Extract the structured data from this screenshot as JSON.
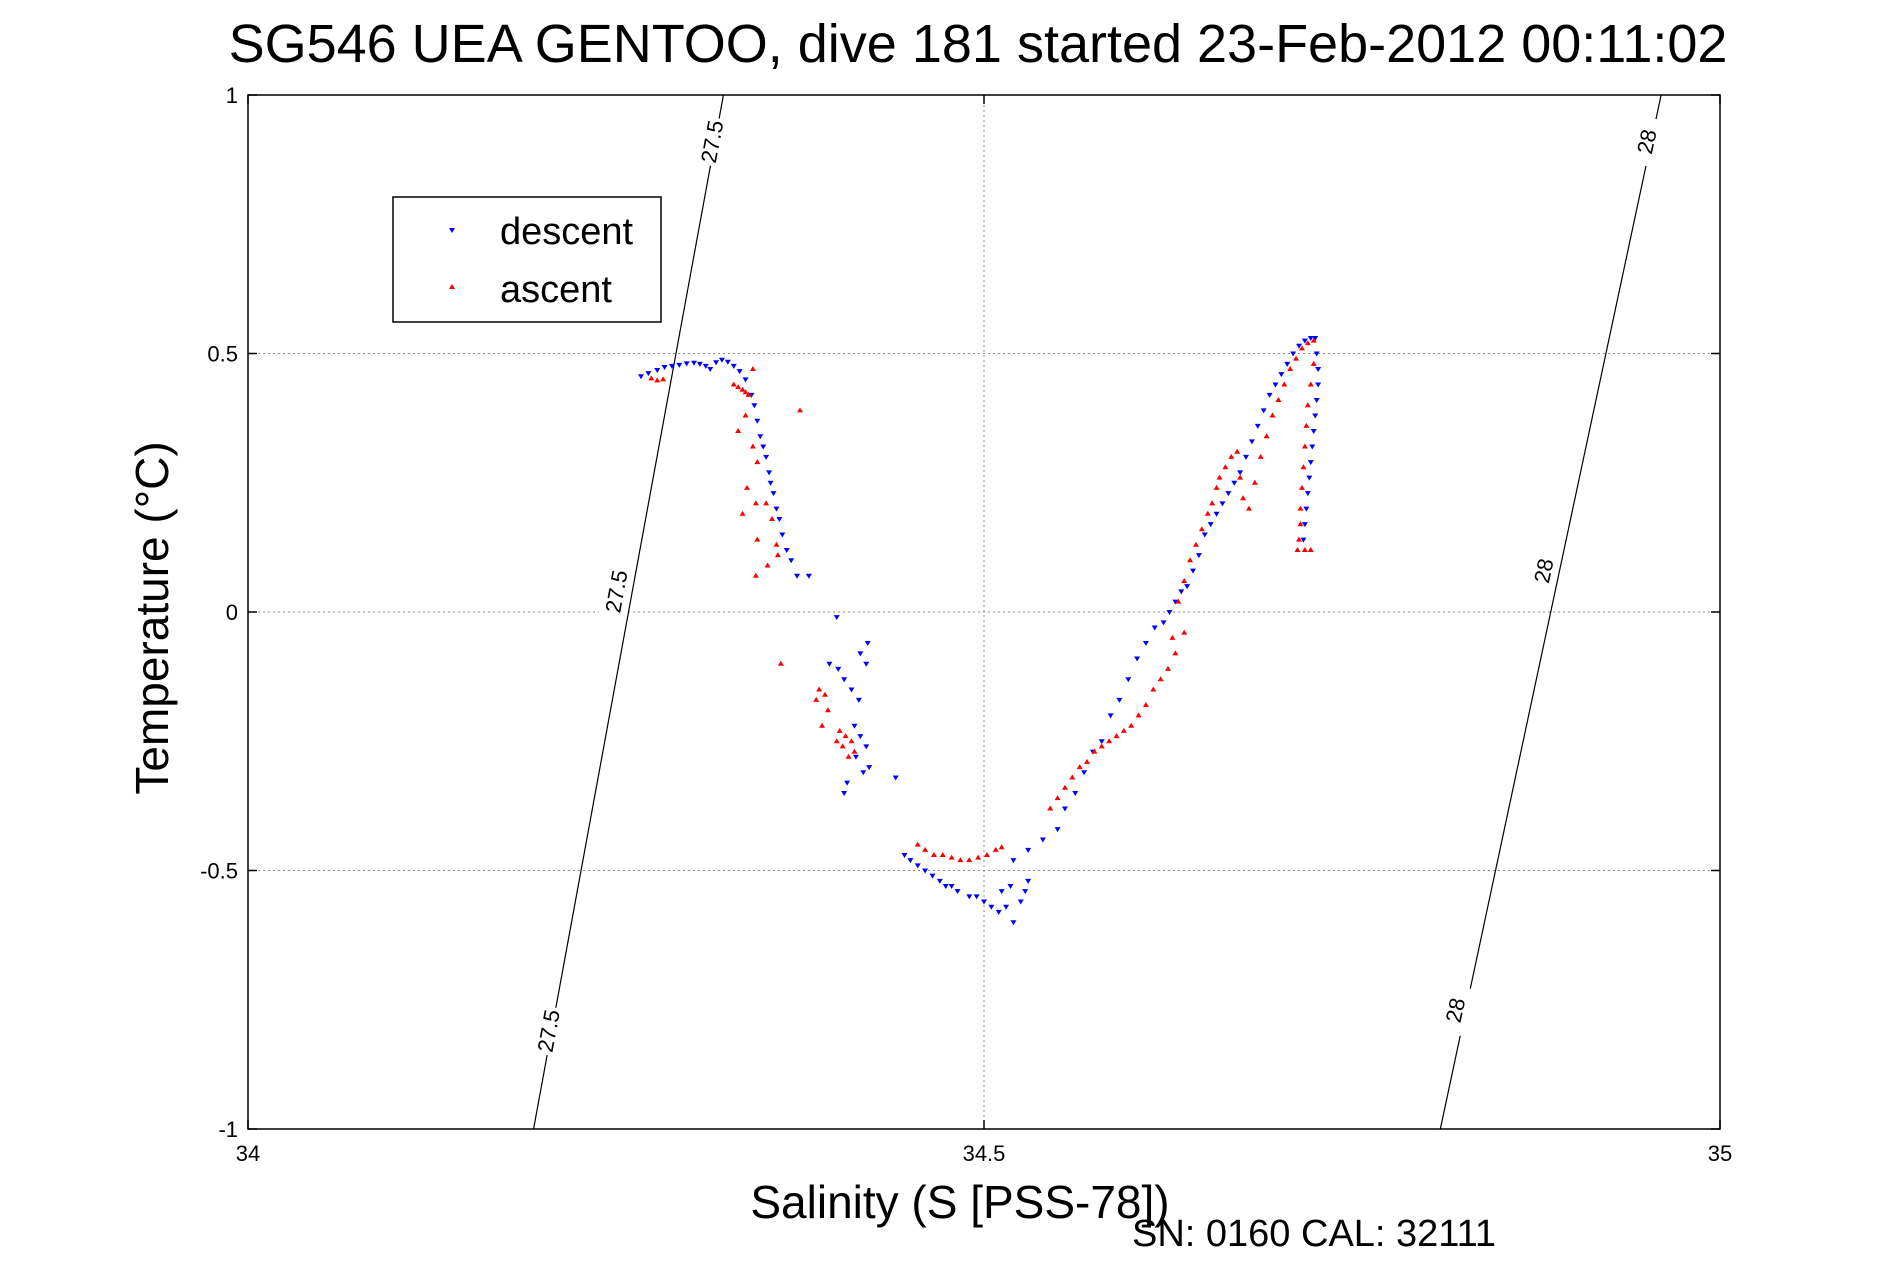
{
  "chart_data": {
    "type": "scatter",
    "title": "SG546 UEA GENTOO, dive 181 started 23-Feb-2012 00:11:02",
    "xlabel": "Salinity (S [PSS-78])",
    "ylabel": "Temperature (°C)",
    "xlim": [
      34,
      35
    ],
    "ylim": [
      -1,
      1
    ],
    "xticks": [
      34,
      34.5,
      35
    ],
    "xtick_labels": [
      "34",
      "34.5",
      "35"
    ],
    "yticks": [
      -1,
      -0.5,
      0,
      0.5,
      1
    ],
    "ytick_labels": [
      "-1",
      "-0.5",
      "0",
      "0.5",
      "1"
    ],
    "grid": true,
    "legend_position": "upper-left",
    "colors": {
      "descent": "#0000ff",
      "ascent": "#ff0000",
      "axis": "#000000"
    },
    "footnote": "SN: 0160  CAL: 32111",
    "isopycnals": [
      {
        "label": "27.5",
        "points": [
          [
            34.194,
            -1
          ],
          [
            34.323,
            1
          ]
        ],
        "label_positions": [
          [
            34.204,
            -0.81
          ],
          [
            34.25,
            0.04
          ],
          [
            34.315,
            0.91
          ]
        ]
      },
      {
        "label": "28",
        "points": [
          [
            34.81,
            -1
          ],
          [
            34.96,
            1
          ]
        ],
        "label_positions": [
          [
            34.82,
            -0.77
          ],
          [
            34.88,
            0.08
          ],
          [
            34.95,
            0.91
          ]
        ]
      }
    ],
    "series": [
      {
        "name": "descent",
        "marker": "triangle-down",
        "points": [
          [
            34.267,
            0.456
          ],
          [
            34.272,
            0.462
          ],
          [
            34.278,
            0.468
          ],
          [
            34.283,
            0.474
          ],
          [
            34.288,
            0.476
          ],
          [
            34.293,
            0.478
          ],
          [
            34.298,
            0.481
          ],
          [
            34.303,
            0.482
          ],
          [
            34.307,
            0.48
          ],
          [
            34.311,
            0.476
          ],
          [
            34.314,
            0.47
          ],
          [
            34.318,
            0.483
          ],
          [
            34.322,
            0.488
          ],
          [
            34.326,
            0.484
          ],
          [
            34.33,
            0.476
          ],
          [
            34.334,
            0.466
          ],
          [
            34.338,
            0.45
          ],
          [
            34.342,
            0.42
          ],
          [
            34.344,
            0.4
          ],
          [
            34.346,
            0.37
          ],
          [
            34.348,
            0.34
          ],
          [
            34.35,
            0.32
          ],
          [
            34.352,
            0.3
          ],
          [
            34.354,
            0.27
          ],
          [
            34.355,
            0.25
          ],
          [
            34.357,
            0.23
          ],
          [
            34.359,
            0.2
          ],
          [
            34.361,
            0.18
          ],
          [
            34.363,
            0.15
          ],
          [
            34.366,
            0.12
          ],
          [
            34.369,
            0.1
          ],
          [
            34.373,
            0.07
          ],
          [
            34.381,
            0.07
          ],
          [
            34.4,
            -0.01
          ],
          [
            34.395,
            -0.1
          ],
          [
            34.401,
            -0.11
          ],
          [
            34.405,
            -0.13
          ],
          [
            34.41,
            -0.15
          ],
          [
            34.415,
            -0.17
          ],
          [
            34.421,
            -0.06
          ],
          [
            34.416,
            -0.08
          ],
          [
            34.42,
            -0.1
          ],
          [
            34.412,
            -0.22
          ],
          [
            34.416,
            -0.24
          ],
          [
            34.42,
            -0.26
          ],
          [
            34.413,
            -0.28
          ],
          [
            34.422,
            -0.3
          ],
          [
            34.418,
            -0.31
          ],
          [
            34.407,
            -0.33
          ],
          [
            34.44,
            -0.32
          ],
          [
            34.405,
            -0.35
          ],
          [
            34.446,
            -0.47
          ],
          [
            34.45,
            -0.48
          ],
          [
            34.455,
            -0.49
          ],
          [
            34.46,
            -0.5
          ],
          [
            34.465,
            -0.51
          ],
          [
            34.47,
            -0.52
          ],
          [
            34.474,
            -0.53
          ],
          [
            34.478,
            -0.53
          ],
          [
            34.482,
            -0.54
          ],
          [
            34.49,
            -0.55
          ],
          [
            34.495,
            -0.55
          ],
          [
            34.5,
            -0.56
          ],
          [
            34.505,
            -0.57
          ],
          [
            34.51,
            -0.58
          ],
          [
            34.515,
            -0.57
          ],
          [
            34.52,
            -0.6
          ],
          [
            34.525,
            -0.56
          ],
          [
            34.528,
            -0.54
          ],
          [
            34.53,
            -0.52
          ],
          [
            34.518,
            -0.53
          ],
          [
            34.512,
            -0.54
          ],
          [
            34.52,
            -0.48
          ],
          [
            34.53,
            -0.46
          ],
          [
            34.54,
            -0.44
          ],
          [
            34.55,
            -0.42
          ],
          [
            34.555,
            -0.38
          ],
          [
            34.562,
            -0.35
          ],
          [
            34.568,
            -0.31
          ],
          [
            34.574,
            -0.27
          ],
          [
            34.58,
            -0.25
          ],
          [
            34.586,
            -0.2
          ],
          [
            34.592,
            -0.17
          ],
          [
            34.598,
            -0.13
          ],
          [
            34.604,
            -0.09
          ],
          [
            34.61,
            -0.06
          ],
          [
            34.616,
            -0.03
          ],
          [
            34.622,
            -0.02
          ],
          [
            34.626,
            0.0
          ],
          [
            34.63,
            0.02
          ],
          [
            34.634,
            0.04
          ],
          [
            34.638,
            0.05
          ],
          [
            34.642,
            0.08
          ],
          [
            34.646,
            0.11
          ],
          [
            34.65,
            0.15
          ],
          [
            34.654,
            0.17
          ],
          [
            34.658,
            0.19
          ],
          [
            34.662,
            0.21
          ],
          [
            34.666,
            0.23
          ],
          [
            34.67,
            0.25
          ],
          [
            34.674,
            0.27
          ],
          [
            34.678,
            0.3
          ],
          [
            34.682,
            0.33
          ],
          [
            34.686,
            0.36
          ],
          [
            34.69,
            0.39
          ],
          [
            34.694,
            0.42
          ],
          [
            34.698,
            0.44
          ],
          [
            34.702,
            0.46
          ],
          [
            34.706,
            0.48
          ],
          [
            34.71,
            0.5
          ],
          [
            34.714,
            0.515
          ],
          [
            34.718,
            0.525
          ],
          [
            34.722,
            0.53
          ],
          [
            34.725,
            0.53
          ],
          [
            34.726,
            0.5
          ],
          [
            34.727,
            0.47
          ],
          [
            34.727,
            0.44
          ],
          [
            34.726,
            0.41
          ],
          [
            34.725,
            0.38
          ],
          [
            34.724,
            0.35
          ],
          [
            34.723,
            0.32
          ],
          [
            34.722,
            0.29
          ],
          [
            34.721,
            0.26
          ],
          [
            34.72,
            0.23
          ],
          [
            34.719,
            0.2
          ],
          [
            34.718,
            0.17
          ],
          [
            34.717,
            0.14
          ]
        ]
      },
      {
        "name": "ascent",
        "marker": "triangle-up",
        "points": [
          [
            34.274,
            0.452
          ],
          [
            34.278,
            0.448
          ],
          [
            34.282,
            0.45
          ],
          [
            34.33,
            0.44
          ],
          [
            34.333,
            0.435
          ],
          [
            34.336,
            0.43
          ],
          [
            34.338,
            0.425
          ],
          [
            34.34,
            0.42
          ],
          [
            34.343,
            0.47
          ],
          [
            34.338,
            0.38
          ],
          [
            34.333,
            0.35
          ],
          [
            34.343,
            0.32
          ],
          [
            34.346,
            0.29
          ],
          [
            34.339,
            0.24
          ],
          [
            34.345,
            0.21
          ],
          [
            34.336,
            0.19
          ],
          [
            34.352,
            0.21
          ],
          [
            34.356,
            0.18
          ],
          [
            34.346,
            0.14
          ],
          [
            34.359,
            0.13
          ],
          [
            34.353,
            0.09
          ],
          [
            34.36,
            0.11
          ],
          [
            34.345,
            0.07
          ],
          [
            34.375,
            0.39
          ],
          [
            34.362,
            -0.1
          ],
          [
            34.388,
            -0.15
          ],
          [
            34.392,
            -0.16
          ],
          [
            34.386,
            -0.17
          ],
          [
            34.394,
            -0.19
          ],
          [
            34.39,
            -0.22
          ],
          [
            34.402,
            -0.23
          ],
          [
            34.406,
            -0.24
          ],
          [
            34.41,
            -0.25
          ],
          [
            34.404,
            -0.26
          ],
          [
            34.412,
            -0.27
          ],
          [
            34.408,
            -0.28
          ],
          [
            34.4,
            -0.25
          ],
          [
            34.455,
            -0.45
          ],
          [
            34.46,
            -0.46
          ],
          [
            34.466,
            -0.47
          ],
          [
            34.472,
            -0.47
          ],
          [
            34.478,
            -0.475
          ],
          [
            34.484,
            -0.48
          ],
          [
            34.49,
            -0.48
          ],
          [
            34.496,
            -0.475
          ],
          [
            34.502,
            -0.47
          ],
          [
            34.508,
            -0.46
          ],
          [
            34.512,
            -0.455
          ],
          [
            34.545,
            -0.38
          ],
          [
            34.55,
            -0.36
          ],
          [
            34.555,
            -0.34
          ],
          [
            34.56,
            -0.32
          ],
          [
            34.565,
            -0.3
          ],
          [
            34.57,
            -0.29
          ],
          [
            34.575,
            -0.27
          ],
          [
            34.58,
            -0.26
          ],
          [
            34.585,
            -0.25
          ],
          [
            34.59,
            -0.24
          ],
          [
            34.595,
            -0.23
          ],
          [
            34.6,
            -0.22
          ],
          [
            34.605,
            -0.2
          ],
          [
            34.61,
            -0.18
          ],
          [
            34.615,
            -0.15
          ],
          [
            34.62,
            -0.13
          ],
          [
            34.625,
            -0.11
          ],
          [
            34.63,
            -0.08
          ],
          [
            34.628,
            -0.05
          ],
          [
            34.636,
            -0.04
          ],
          [
            34.632,
            0.02
          ],
          [
            34.636,
            0.06
          ],
          [
            34.64,
            0.1
          ],
          [
            34.644,
            0.13
          ],
          [
            34.648,
            0.16
          ],
          [
            34.652,
            0.19
          ],
          [
            34.655,
            0.21
          ],
          [
            34.658,
            0.24
          ],
          [
            34.66,
            0.26
          ],
          [
            34.664,
            0.28
          ],
          [
            34.668,
            0.3
          ],
          [
            34.672,
            0.31
          ],
          [
            34.674,
            0.26
          ],
          [
            34.676,
            0.22
          ],
          [
            34.68,
            0.2
          ],
          [
            34.684,
            0.25
          ],
          [
            34.688,
            0.3
          ],
          [
            34.692,
            0.34
          ],
          [
            34.696,
            0.38
          ],
          [
            34.7,
            0.41
          ],
          [
            34.704,
            0.44
          ],
          [
            34.708,
            0.47
          ],
          [
            34.712,
            0.49
          ],
          [
            34.716,
            0.51
          ],
          [
            34.72,
            0.52
          ],
          [
            34.724,
            0.525
          ],
          [
            34.724,
            0.48
          ],
          [
            34.722,
            0.44
          ],
          [
            34.72,
            0.4
          ],
          [
            34.719,
            0.36
          ],
          [
            34.718,
            0.32
          ],
          [
            34.717,
            0.28
          ],
          [
            34.716,
            0.24
          ],
          [
            34.715,
            0.2
          ],
          [
            34.715,
            0.17
          ],
          [
            34.714,
            0.14
          ],
          [
            34.713,
            0.12
          ],
          [
            34.718,
            0.12
          ],
          [
            34.722,
            0.12
          ]
        ]
      }
    ]
  }
}
